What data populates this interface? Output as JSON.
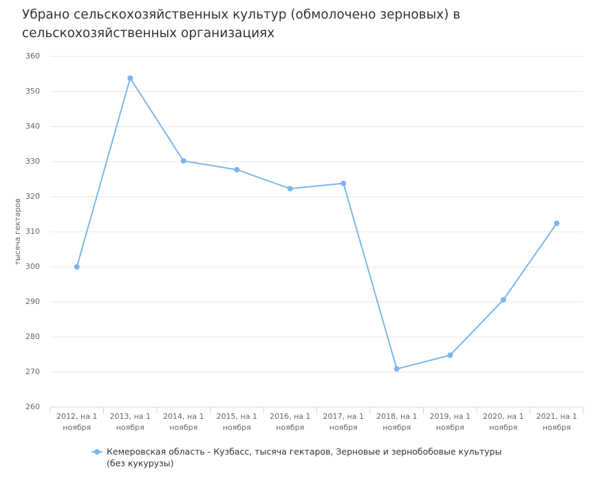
{
  "chart_data": {
    "type": "line",
    "title": "Убрано сельскохозяйственных культур (обмолочено зерновых) в сельскохозяйственных организациях",
    "y_label": "тысяча гектаров",
    "categories": [
      "2012, на 1 ноября",
      "2013, на 1 ноября",
      "2014, на 1 ноября",
      "2015, на 1 ноября",
      "2016, на 1 ноября",
      "2017, на 1 ноября",
      "2018, на 1 ноября",
      "2019, на 1 ноября",
      "2020, на 1 ноября",
      "2021, на 1 ноября"
    ],
    "series": [
      {
        "name": "Кемеровская область - Кузбасс, тысяча гектаров, Зерновые и зернобобовые культуры (без кукурузы)",
        "color": "#7cb5ec",
        "values": [
          300,
          353.8,
          330.2,
          327.7,
          322.3,
          323.8,
          270.9,
          274.8,
          290.6,
          312.4
        ]
      }
    ],
    "ylim": [
      260,
      360
    ],
    "yticks": [
      260,
      270,
      280,
      290,
      300,
      310,
      320,
      330,
      340,
      350,
      360
    ],
    "grid": true
  }
}
